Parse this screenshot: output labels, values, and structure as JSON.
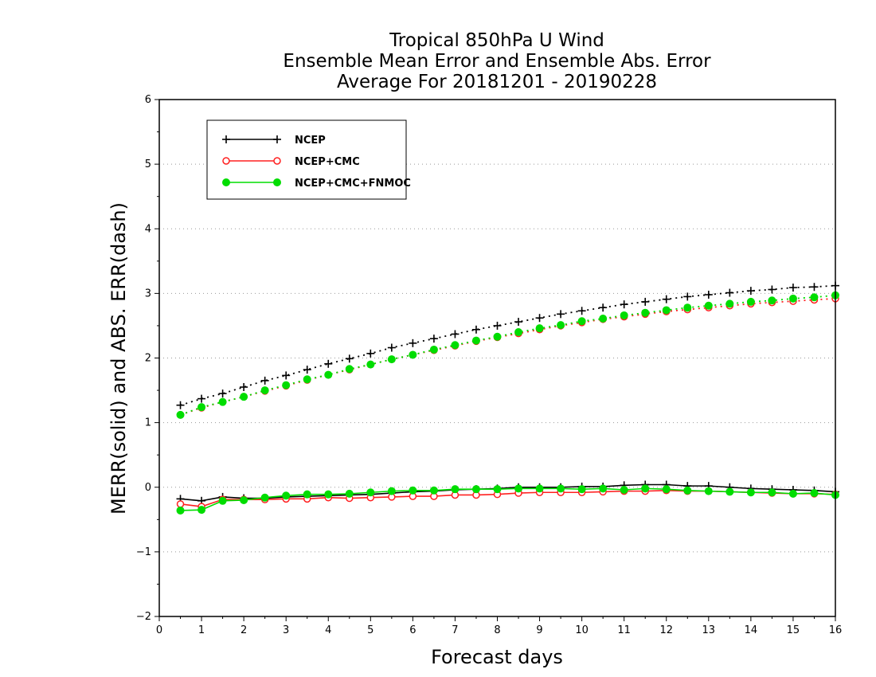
{
  "chart_data": {
    "type": "line",
    "title": [
      "Tropical 850hPa U Wind",
      "Ensemble Mean Error and Ensemble Abs. Error",
      "Average For 20181201 - 20190228"
    ],
    "xlabel": "Forecast days",
    "ylabel": "MERR(solid) and ABS. ERR(dash)",
    "xlim": [
      0,
      16
    ],
    "ylim": [
      -2,
      6
    ],
    "xticks": [
      "0",
      "1",
      "2",
      "3",
      "4",
      "5",
      "6",
      "7",
      "8",
      "9",
      "10",
      "11",
      "12",
      "13",
      "14",
      "15",
      "16"
    ],
    "yticks": [
      "−2",
      "−1",
      "0",
      "1",
      "2",
      "3",
      "4",
      "5",
      "6"
    ],
    "grid": "dotted horizontal",
    "legend_position": "top-left",
    "x": [
      0.5,
      1,
      1.5,
      2,
      2.5,
      3,
      3.5,
      4,
      4.5,
      5,
      5.5,
      6,
      6.5,
      7,
      7.5,
      8,
      8.5,
      9,
      9.5,
      10,
      10.5,
      11,
      11.5,
      12,
      12.5,
      13,
      13.5,
      14,
      14.5,
      15,
      15.5,
      16
    ],
    "series": [
      {
        "name": "NCEP",
        "color": "#000000",
        "marker": "plus",
        "merr": [
          -0.18,
          -0.21,
          -0.15,
          -0.17,
          -0.17,
          -0.15,
          -0.14,
          -0.13,
          -0.12,
          -0.11,
          -0.09,
          -0.07,
          -0.06,
          -0.04,
          -0.03,
          -0.02,
          0.0,
          0.0,
          0.0,
          0.01,
          0.01,
          0.03,
          0.04,
          0.04,
          0.02,
          0.02,
          0.0,
          -0.02,
          -0.03,
          -0.04,
          -0.05,
          -0.07
        ],
        "abs_err": [
          1.27,
          1.37,
          1.45,
          1.55,
          1.65,
          1.73,
          1.82,
          1.91,
          1.99,
          2.07,
          2.16,
          2.23,
          2.3,
          2.37,
          2.44,
          2.5,
          2.56,
          2.62,
          2.68,
          2.73,
          2.78,
          2.83,
          2.87,
          2.91,
          2.95,
          2.98,
          3.01,
          3.04,
          3.06,
          3.09,
          3.1,
          3.12
        ]
      },
      {
        "name": "NCEP+CMC",
        "color": "#ff2020",
        "marker": "open-circle",
        "merr": [
          -0.26,
          -0.3,
          -0.19,
          -0.19,
          -0.19,
          -0.18,
          -0.18,
          -0.16,
          -0.17,
          -0.16,
          -0.15,
          -0.14,
          -0.14,
          -0.12,
          -0.12,
          -0.11,
          -0.09,
          -0.08,
          -0.08,
          -0.08,
          -0.07,
          -0.06,
          -0.06,
          -0.05,
          -0.06,
          -0.06,
          -0.07,
          -0.08,
          -0.09,
          -0.1,
          -0.1,
          -0.11
        ],
        "abs_err": [
          1.12,
          1.23,
          1.32,
          1.4,
          1.49,
          1.57,
          1.66,
          1.74,
          1.82,
          1.9,
          1.98,
          2.05,
          2.12,
          2.19,
          2.26,
          2.32,
          2.38,
          2.44,
          2.5,
          2.55,
          2.6,
          2.64,
          2.68,
          2.72,
          2.75,
          2.78,
          2.81,
          2.84,
          2.86,
          2.88,
          2.9,
          2.92
        ]
      },
      {
        "name": "NCEP+CMC+FNMOC",
        "color": "#00dd00",
        "marker": "filled-circle",
        "merr": [
          -0.36,
          -0.35,
          -0.21,
          -0.2,
          -0.16,
          -0.13,
          -0.11,
          -0.11,
          -0.1,
          -0.08,
          -0.06,
          -0.05,
          -0.05,
          -0.03,
          -0.03,
          -0.03,
          -0.02,
          -0.02,
          -0.02,
          -0.03,
          -0.02,
          -0.04,
          -0.02,
          -0.03,
          -0.05,
          -0.06,
          -0.07,
          -0.08,
          -0.08,
          -0.1,
          -0.09,
          -0.12
        ],
        "abs_err": [
          1.12,
          1.24,
          1.32,
          1.4,
          1.5,
          1.58,
          1.67,
          1.74,
          1.83,
          1.9,
          1.98,
          2.05,
          2.13,
          2.2,
          2.27,
          2.33,
          2.4,
          2.46,
          2.51,
          2.57,
          2.61,
          2.66,
          2.7,
          2.74,
          2.78,
          2.81,
          2.84,
          2.87,
          2.89,
          2.92,
          2.94,
          2.97
        ]
      }
    ]
  }
}
